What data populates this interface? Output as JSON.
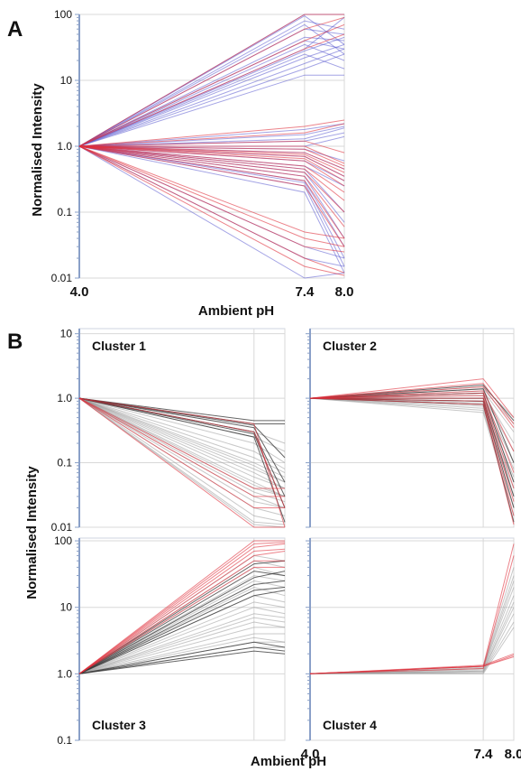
{
  "panel_labels": {
    "a": "A",
    "b": "B"
  },
  "colors": {
    "blue": "#5a5ad0",
    "red": "#e0303c",
    "gray": "#9a9a9a",
    "dark": "#333333",
    "grid": "#d8d8d8",
    "axis": "#8aa0c8"
  },
  "chart_data": [
    {
      "id": "panel-a",
      "type": "line",
      "scale_y": "log",
      "x": [
        4.0,
        7.4,
        8.0
      ],
      "x_tick_labels": [
        "4.0",
        "7.4",
        "8.0"
      ],
      "y_tick_values": [
        0.01,
        0.1,
        1.0,
        10,
        100
      ],
      "y_tick_labels": [
        "0.01",
        "0.1",
        "1.0",
        "10",
        "100"
      ],
      "ylim": [
        0.01,
        100
      ],
      "xlabel": "Ambient pH",
      "ylabel": "Normalised Intensity",
      "series_groups": [
        {
          "color": "blue",
          "lines": [
            [
              1,
              100,
              100
            ],
            [
              1,
              95,
              35
            ],
            [
              1,
              80,
              60
            ],
            [
              1,
              70,
              25
            ],
            [
              1,
              60,
              50
            ],
            [
              1,
              45,
              40
            ],
            [
              1,
              40,
              30
            ],
            [
              1,
              35,
              20
            ],
            [
              1,
              30,
              90
            ],
            [
              1,
              28,
              45
            ],
            [
              1,
              25,
              15
            ],
            [
              1,
              22,
              35
            ],
            [
              1,
              18,
              30
            ],
            [
              1,
              15,
              25
            ],
            [
              1,
              12,
              12
            ]
          ]
        },
        {
          "color": "blue",
          "lines": [
            [
              1,
              1.8,
              2.2
            ],
            [
              1,
              1.5,
              2.0
            ],
            [
              1,
              1.3,
              1.9
            ],
            [
              1,
              1.2,
              1.6
            ],
            [
              1,
              1.0,
              1.4
            ],
            [
              1,
              0.9,
              0.6
            ],
            [
              1,
              0.8,
              0.45
            ],
            [
              1,
              0.7,
              0.35
            ],
            [
              1,
              0.6,
              0.3
            ],
            [
              1,
              0.5,
              0.25
            ],
            [
              1,
              0.45,
              0.1
            ],
            [
              1,
              0.4,
              0.07
            ],
            [
              1,
              0.35,
              0.04
            ],
            [
              1,
              0.3,
              0.03
            ],
            [
              1,
              0.28,
              0.02
            ],
            [
              1,
              0.25,
              0.015
            ],
            [
              1,
              0.2,
              0.012
            ],
            [
              1,
              0.03,
              0.02
            ],
            [
              1,
              0.02,
              0.015
            ],
            [
              1,
              0.01,
              0.012
            ]
          ]
        },
        {
          "color": "red",
          "lines": [
            [
              1,
              100,
              100
            ],
            [
              1,
              60,
              90
            ],
            [
              1,
              40,
              70
            ],
            [
              1,
              30,
              50
            ],
            [
              1,
              2.0,
              2.5
            ],
            [
              1,
              1.6,
              2.2
            ],
            [
              1,
              1.2,
              0.8
            ],
            [
              1,
              1.0,
              0.55
            ],
            [
              1,
              0.9,
              0.5
            ],
            [
              1,
              0.8,
              0.45
            ],
            [
              1,
              0.75,
              0.4
            ],
            [
              1,
              0.7,
              0.35
            ],
            [
              1,
              0.65,
              0.3
            ],
            [
              1,
              0.6,
              0.25
            ],
            [
              1,
              0.5,
              0.2
            ],
            [
              1,
              0.45,
              0.15
            ],
            [
              1,
              0.4,
              0.1
            ],
            [
              1,
              0.35,
              0.06
            ],
            [
              1,
              0.3,
              0.04
            ],
            [
              1,
              0.25,
              0.03
            ],
            [
              1,
              0.05,
              0.04
            ],
            [
              1,
              0.04,
              0.03
            ],
            [
              1,
              0.03,
              0.025
            ],
            [
              1,
              0.02,
              0.012
            ],
            [
              1,
              0.015,
              0.011
            ]
          ]
        }
      ]
    },
    {
      "id": "cluster-1",
      "type": "line",
      "scale_y": "log",
      "title": "Cluster 1",
      "x": [
        4.0,
        7.4,
        8.0
      ],
      "y_tick_values": [
        0.01,
        0.1,
        1.0,
        10
      ],
      "y_tick_labels": [
        "0.01",
        "0.1",
        "1.0",
        "10"
      ],
      "ylim": [
        0.01,
        12
      ],
      "series_groups": [
        {
          "color": "gray",
          "lines": [
            [
              1,
              0.3,
              0.2
            ],
            [
              1,
              0.25,
              0.15
            ],
            [
              1,
              0.2,
              0.1
            ],
            [
              1,
              0.15,
              0.08
            ],
            [
              1,
              0.12,
              0.07
            ],
            [
              1,
              0.1,
              0.06
            ],
            [
              1,
              0.09,
              0.05
            ],
            [
              1,
              0.08,
              0.05
            ],
            [
              1,
              0.07,
              0.04
            ],
            [
              1,
              0.06,
              0.04
            ],
            [
              1,
              0.05,
              0.03
            ],
            [
              1,
              0.045,
              0.03
            ],
            [
              1,
              0.04,
              0.03
            ],
            [
              1,
              0.035,
              0.025
            ],
            [
              1,
              0.03,
              0.02
            ],
            [
              1,
              0.025,
              0.02
            ],
            [
              1,
              0.02,
              0.015
            ],
            [
              1,
              0.015,
              0.012
            ],
            [
              1,
              0.012,
              0.011
            ],
            [
              1,
              0.011,
              0.01
            ]
          ]
        },
        {
          "color": "dark",
          "lines": [
            [
              1,
              0.45,
              0.45
            ],
            [
              1,
              0.4,
              0.4
            ],
            [
              1,
              0.38,
              0.12
            ],
            [
              1,
              0.35,
              0.05
            ],
            [
              1,
              0.3,
              0.03
            ],
            [
              1,
              0.28,
              0.02
            ],
            [
              1,
              0.25,
              0.012
            ]
          ]
        },
        {
          "color": "red",
          "lines": [
            [
              1,
              0.4,
              0.01
            ],
            [
              1,
              0.3,
              0.02
            ],
            [
              1,
              0.04,
              0.04
            ],
            [
              1,
              0.03,
              0.03
            ],
            [
              1,
              0.02,
              0.02
            ],
            [
              1,
              0.01,
              0.01
            ]
          ]
        }
      ]
    },
    {
      "id": "cluster-2",
      "type": "line",
      "scale_y": "log",
      "title": "Cluster 2",
      "x": [
        4.0,
        7.4,
        8.0
      ],
      "ylim": [
        0.01,
        12
      ],
      "series_groups": [
        {
          "color": "gray",
          "lines": [
            [
              1,
              1.5,
              0.5
            ],
            [
              1,
              1.4,
              0.4
            ],
            [
              1,
              1.3,
              0.3
            ],
            [
              1,
              1.2,
              0.2
            ],
            [
              1,
              1.1,
              0.15
            ],
            [
              1,
              1.0,
              0.1
            ],
            [
              1,
              0.9,
              0.08
            ],
            [
              1,
              0.85,
              0.06
            ],
            [
              1,
              0.8,
              0.05
            ],
            [
              1,
              0.75,
              0.04
            ],
            [
              1,
              0.7,
              0.03
            ],
            [
              1,
              0.65,
              0.02
            ],
            [
              1,
              0.6,
              0.015
            ]
          ]
        },
        {
          "color": "dark",
          "lines": [
            [
              1,
              1.6,
              0.45
            ],
            [
              1,
              1.4,
              0.1
            ],
            [
              1,
              1.2,
              0.05
            ],
            [
              1,
              1.0,
              0.03
            ],
            [
              1,
              0.9,
              0.02
            ],
            [
              1,
              0.8,
              0.012
            ]
          ]
        },
        {
          "color": "red",
          "lines": [
            [
              1,
              2.0,
              0.5
            ],
            [
              1,
              1.7,
              0.4
            ],
            [
              1,
              1.5,
              0.35
            ],
            [
              1,
              1.3,
              0.15
            ],
            [
              1,
              1.2,
              0.07
            ],
            [
              1,
              1.1,
              0.04
            ],
            [
              1,
              1.0,
              0.025
            ],
            [
              1,
              0.9,
              0.015
            ],
            [
              1,
              0.8,
              0.011
            ]
          ]
        }
      ]
    },
    {
      "id": "cluster-3",
      "type": "line",
      "scale_y": "log",
      "title": "Cluster 3",
      "x": [
        4.0,
        7.4,
        8.0
      ],
      "y_tick_values": [
        0.1,
        1.0,
        10,
        100
      ],
      "y_tick_labels": [
        "0.1",
        "1.0",
        "10",
        "100"
      ],
      "ylim": [
        0.1,
        110
      ],
      "series_groups": [
        {
          "color": "gray",
          "lines": [
            [
              1,
              60,
              50
            ],
            [
              1,
              50,
              40
            ],
            [
              1,
              40,
              30
            ],
            [
              1,
              30,
              25
            ],
            [
              1,
              25,
              20
            ],
            [
              1,
              20,
              15
            ],
            [
              1,
              15,
              12
            ],
            [
              1,
              12,
              10
            ],
            [
              1,
              10,
              8
            ],
            [
              1,
              8,
              7
            ],
            [
              1,
              7,
              6
            ],
            [
              1,
              6,
              5
            ],
            [
              1,
              5,
              5
            ],
            [
              1,
              4,
              4
            ],
            [
              1,
              3.5,
              3
            ],
            [
              1,
              3,
              3
            ],
            [
              1,
              2.5,
              2.5
            ]
          ]
        },
        {
          "color": "dark",
          "lines": [
            [
              1,
              45,
              50
            ],
            [
              1,
              35,
              30
            ],
            [
              1,
              28,
              35
            ],
            [
              1,
              22,
              25
            ],
            [
              1,
              18,
              20
            ],
            [
              1,
              15,
              18
            ],
            [
              1,
              3,
              2.5
            ],
            [
              1,
              2.5,
              2.2
            ],
            [
              1,
              2.2,
              2.0
            ]
          ]
        },
        {
          "color": "red",
          "lines": [
            [
              1,
              100,
              100
            ],
            [
              1,
              90,
              95
            ],
            [
              1,
              80,
              90
            ],
            [
              1,
              70,
              75
            ],
            [
              1,
              60,
              70
            ],
            [
              1,
              50,
              50
            ],
            [
              1,
              40,
              40
            ]
          ]
        }
      ]
    },
    {
      "id": "cluster-4",
      "type": "line",
      "scale_y": "log",
      "title": "Cluster 4",
      "x": [
        4.0,
        7.4,
        8.0
      ],
      "x_tick_labels": [
        "4.0",
        "7.4",
        "8.0"
      ],
      "ylim": [
        0.1,
        110
      ],
      "series_groups": [
        {
          "color": "gray",
          "lines": [
            [
              1,
              1.3,
              40
            ],
            [
              1,
              1.25,
              30
            ],
            [
              1,
              1.2,
              25
            ],
            [
              1,
              1.2,
              20
            ],
            [
              1,
              1.15,
              15
            ],
            [
              1,
              1.1,
              12
            ],
            [
              1,
              1.1,
              10
            ],
            [
              1,
              1.05,
              8
            ],
            [
              1,
              1.05,
              6
            ],
            [
              1,
              1.0,
              5
            ]
          ]
        },
        {
          "color": "red",
          "lines": [
            [
              1,
              1.3,
              90
            ],
            [
              1,
              1.2,
              60
            ],
            [
              1,
              1.35,
              2.0
            ],
            [
              1,
              1.3,
              1.9
            ],
            [
              1,
              1.3,
              1.8
            ]
          ]
        }
      ]
    }
  ],
  "shared_labels": {
    "b_ylabel": "Normalised Intensity",
    "b_xlabel": "Ambient pH"
  }
}
